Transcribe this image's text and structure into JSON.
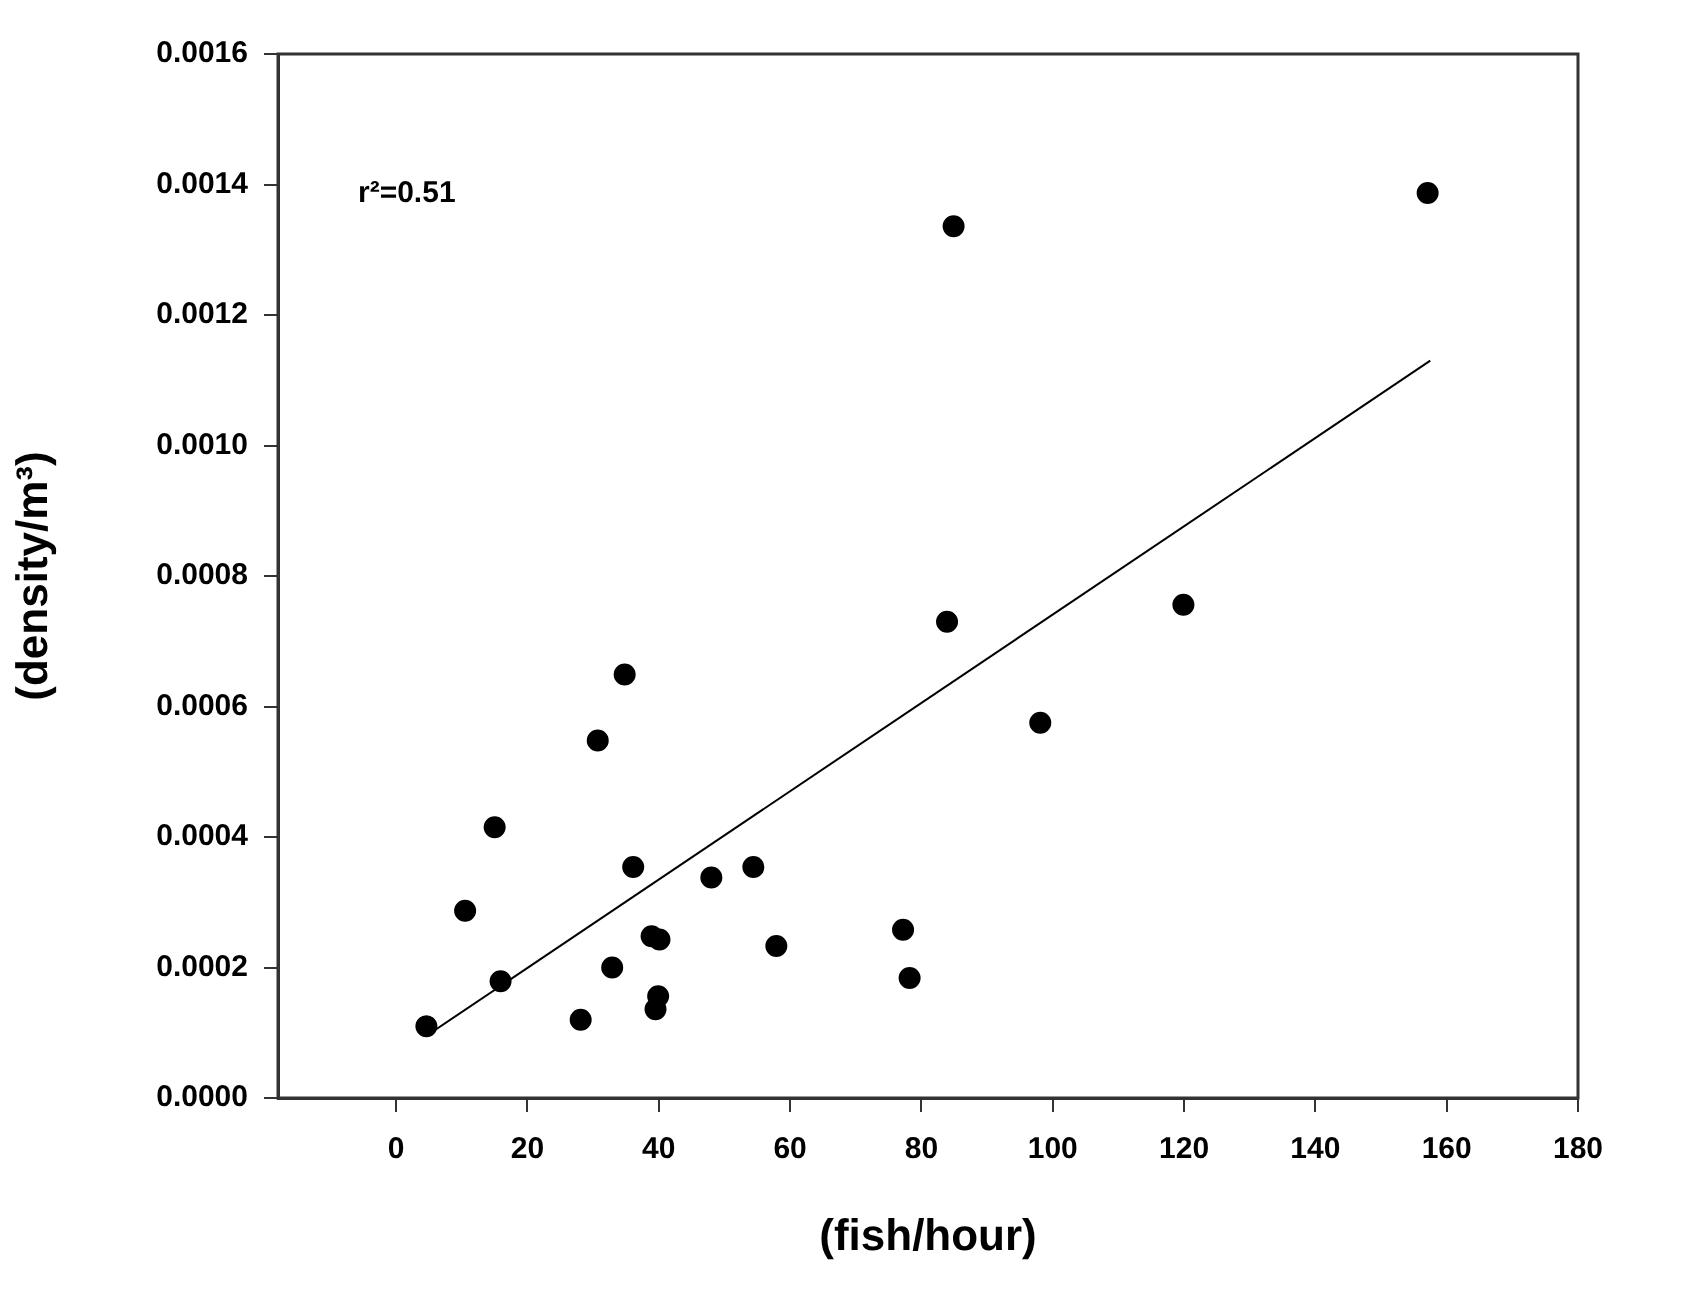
{
  "chart_data": {
    "type": "scatter",
    "xlabel": "(fish/hour)",
    "ylabel": "(density/m³)",
    "annotations": [
      "r²=0.51"
    ],
    "xlim": [
      -18,
      180
    ],
    "xticks": [
      0,
      20,
      40,
      60,
      80,
      100,
      120,
      140,
      160,
      180
    ],
    "ylim": [
      0,
      0.0016
    ],
    "yticks": [
      {
        "value": 0,
        "label": "0.0000"
      },
      {
        "value": 0.0002,
        "label": "0.0002"
      },
      {
        "value": 0.0004,
        "label": "0.0004"
      },
      {
        "value": 0.0006,
        "label": "0.0006"
      },
      {
        "value": 0.0008,
        "label": "0.0008"
      },
      {
        "value": 0.001,
        "label": "0.0010"
      },
      {
        "value": 0.0012,
        "label": "0.0012"
      },
      {
        "value": 0.0014,
        "label": "0.0014"
      },
      {
        "value": 0.0016,
        "label": "0.0016"
      }
    ],
    "grid": false,
    "legend": false,
    "marker": "circle",
    "series": [
      {
        "type": "scatter",
        "color": "#000000",
        "x": [
          4.6,
          10.5,
          15.0,
          15.9,
          28.1,
          30.7,
          32.9,
          34.8,
          36.1,
          38.9,
          40.1,
          39.9,
          39.5,
          48.0,
          54.4,
          57.9,
          77.2,
          78.2,
          83.9,
          98.1,
          119.9,
          84.9,
          157.1
        ],
        "values": [
          0.00011,
          0.000287,
          0.000415,
          0.000179,
          0.00012,
          0.000548,
          0.0002,
          0.000649,
          0.000354,
          0.000248,
          0.000243,
          0.000156,
          0.000136,
          0.000338,
          0.000354,
          0.000233,
          0.000258,
          0.000184,
          0.00073,
          0.000575,
          0.000756,
          0.001336,
          0.001387
        ]
      },
      {
        "type": "line",
        "color": "#000000",
        "marker": "none",
        "x": [
          5.3,
          157.5
        ],
        "values": [
          0.0001,
          0.00113
        ]
      }
    ]
  }
}
